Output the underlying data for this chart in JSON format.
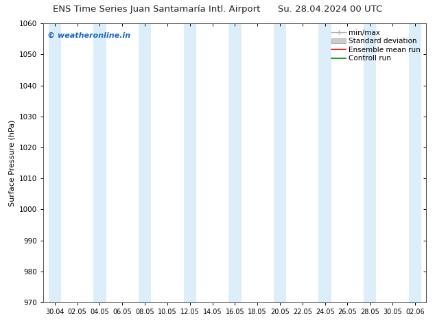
{
  "title_left": "ENS Time Series Juan Santamaría Intl. Airport",
  "title_right": "Su. 28.04.2024 00 UTC",
  "ylabel": "Surface Pressure (hPa)",
  "ylim": [
    970,
    1060
  ],
  "yticks": [
    970,
    980,
    990,
    1000,
    1010,
    1020,
    1030,
    1040,
    1050,
    1060
  ],
  "xtick_labels": [
    "30.04",
    "02.05",
    "04.05",
    "06.05",
    "08.05",
    "10.05",
    "12.05",
    "14.05",
    "16.05",
    "18.05",
    "20.05",
    "22.05",
    "24.05",
    "26.05",
    "28.05",
    "30.05",
    "02.06"
  ],
  "watermark": "© weatheronline.in",
  "watermark_color": "#1565C0",
  "background_color": "#ffffff",
  "plot_bg_color": "#ffffff",
  "shade_color": "#cce8f8",
  "shade_alpha": 0.7,
  "legend_items": [
    {
      "label": "min/max",
      "color": "#aaaaaa",
      "lw": 1.0
    },
    {
      "label": "Standard deviation",
      "color": "#cccccc",
      "lw": 6
    },
    {
      "label": "Ensemble mean run",
      "color": "red",
      "lw": 1.2
    },
    {
      "label": "Controll run",
      "color": "green",
      "lw": 1.2
    }
  ],
  "n_xticks": 17,
  "figsize": [
    6.34,
    4.9
  ],
  "dpi": 100,
  "title_fontsize": 9.5,
  "ylabel_fontsize": 8,
  "ytick_fontsize": 7.5,
  "xtick_fontsize": 7.0,
  "watermark_fontsize": 8,
  "legend_fontsize": 7.5
}
